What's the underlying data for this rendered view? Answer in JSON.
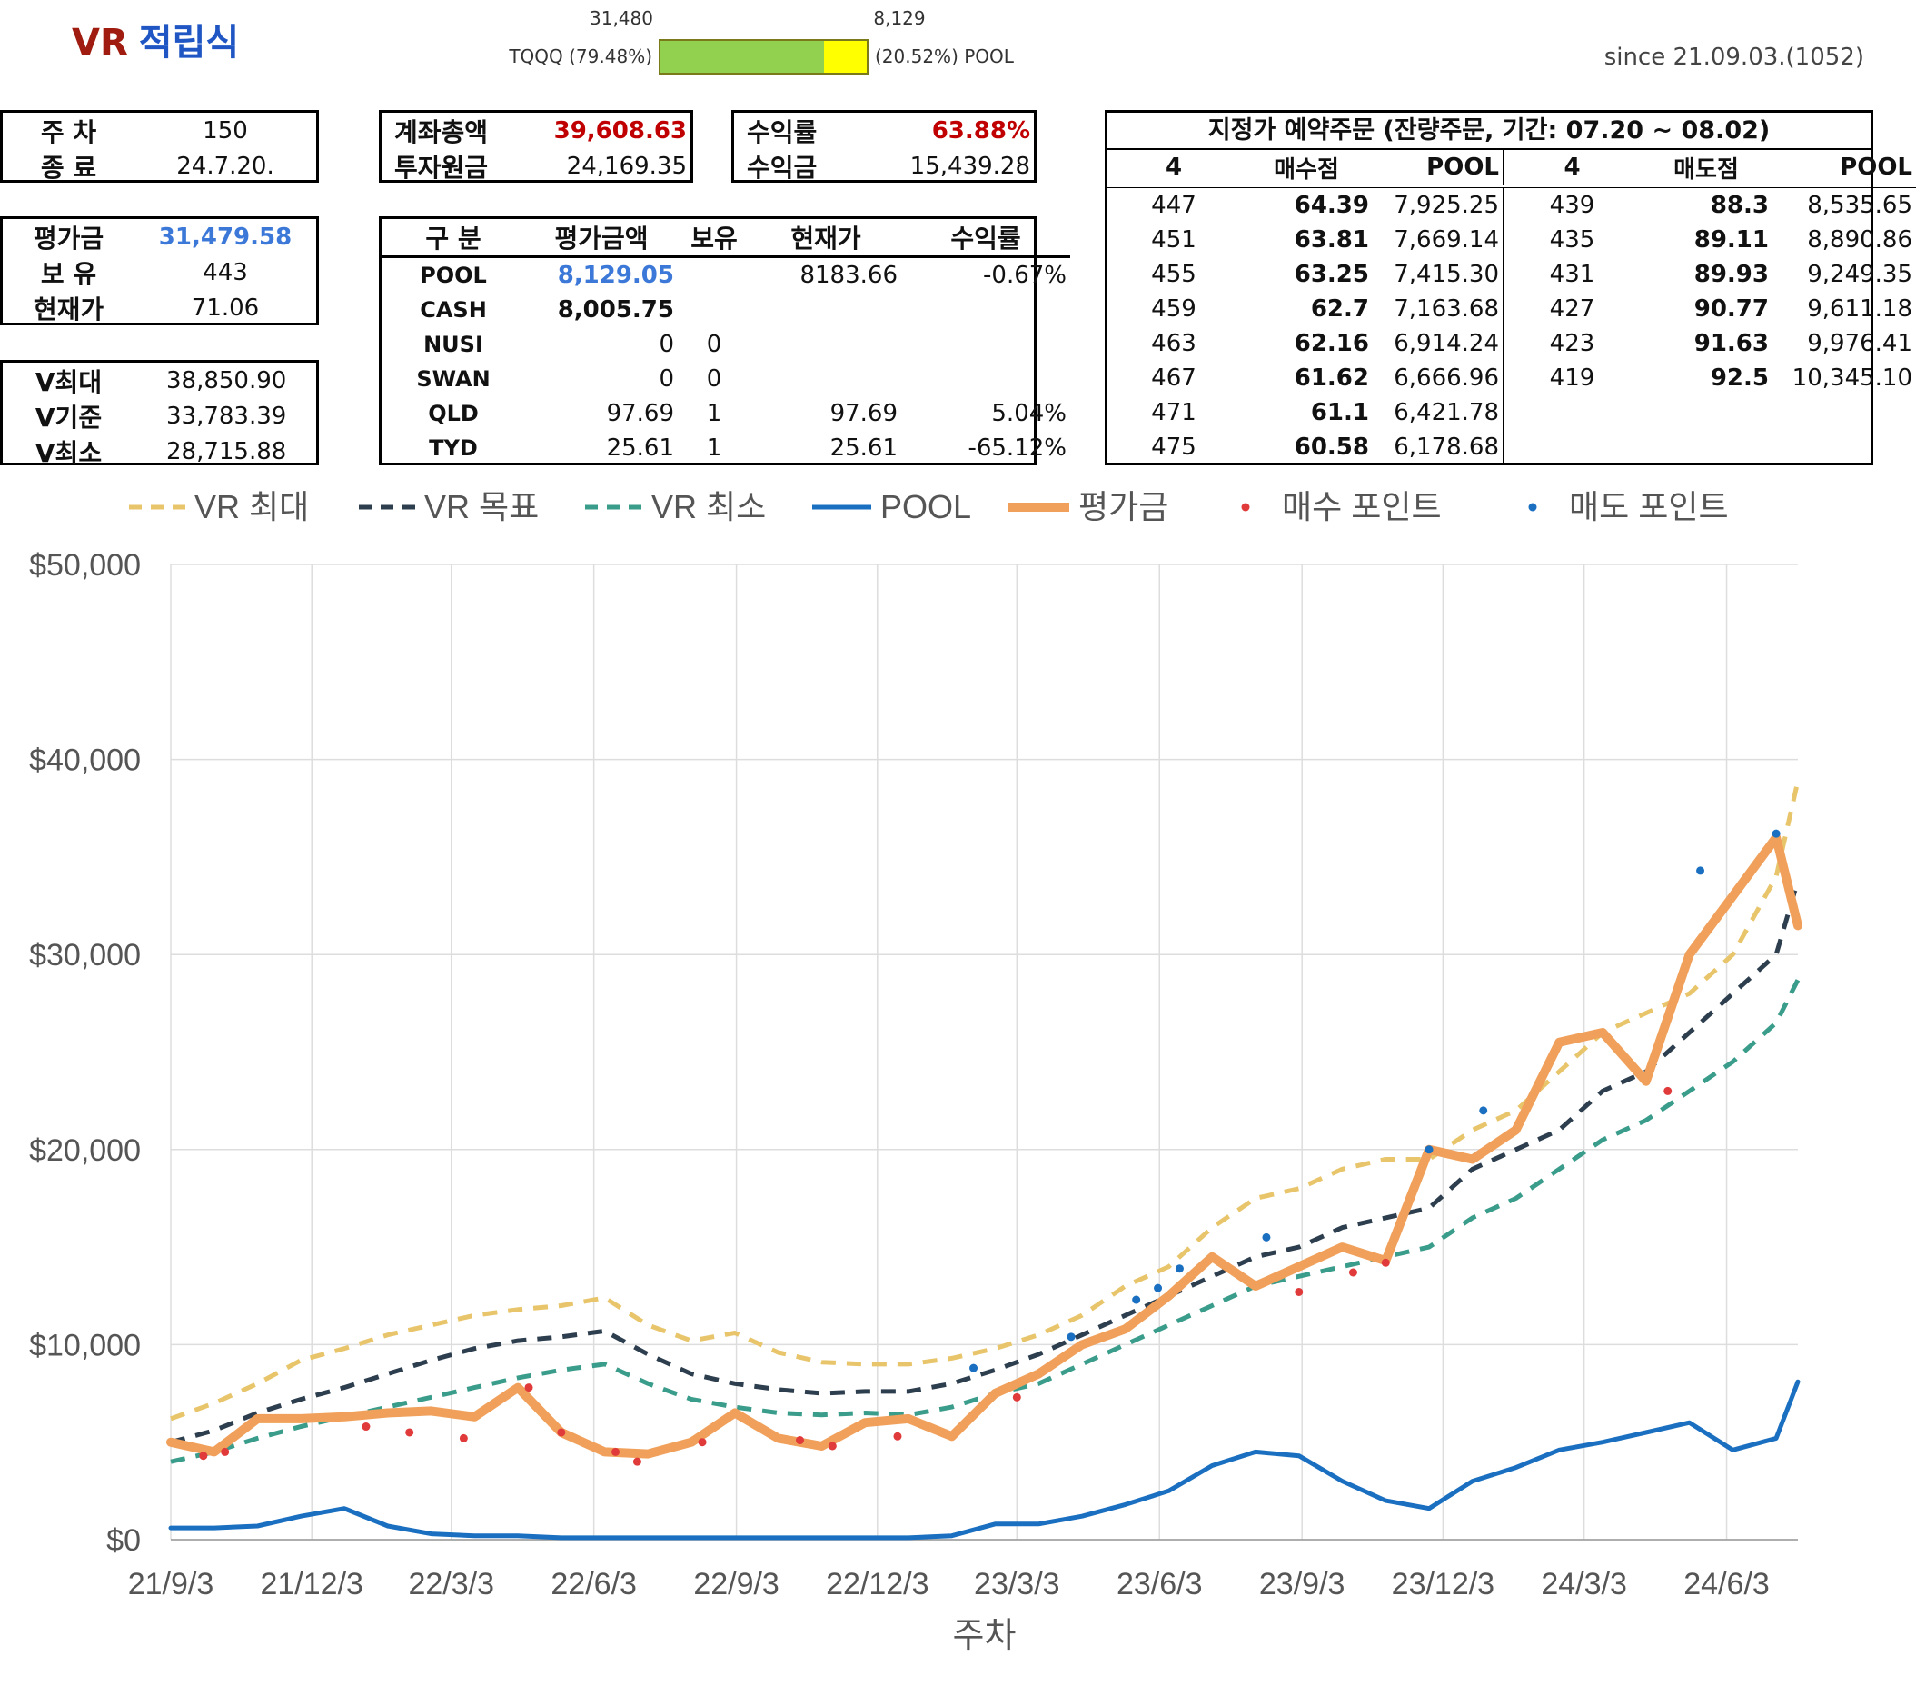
{
  "header": {
    "title_prefix": "VR",
    "title_main": "적립식",
    "since": "since 21.09.03.(1052)",
    "allocation": {
      "values": [
        31480,
        8129
      ],
      "value_labels": [
        "31,480",
        "8,129"
      ],
      "labels": [
        "TQQQ (79.48%)",
        "(20.52%) POOL"
      ],
      "colors": [
        "#92d050",
        "#ffff00"
      ]
    }
  },
  "week_box": {
    "rows": [
      [
        "주 차",
        "150"
      ],
      [
        "종 료",
        "24.7.20."
      ]
    ]
  },
  "value_box": {
    "rows": [
      [
        "평가금",
        "31,479.58"
      ],
      [
        "보 유",
        "443"
      ],
      [
        "현재가",
        "71.06"
      ]
    ]
  },
  "v_box": {
    "rows": [
      [
        "V최대",
        "38,850.90"
      ],
      [
        "V기준",
        "33,783.39"
      ],
      [
        "V최소",
        "28,715.88"
      ]
    ]
  },
  "account_box": {
    "rows": [
      [
        "계좌총액",
        "39,608.63"
      ],
      [
        "투자원금",
        "24,169.35"
      ]
    ]
  },
  "return_box": {
    "rows": [
      [
        "수익률",
        "63.88%"
      ],
      [
        "수익금",
        "15,439.28"
      ]
    ]
  },
  "holdings": {
    "headers": [
      "구 분",
      "평가금액",
      "보유",
      "현재가",
      "수익률"
    ],
    "rows": [
      [
        "POOL",
        "8,129.05",
        null,
        "8183.66",
        "-0.67%"
      ],
      [
        "CASH",
        "8,005.75",
        null,
        null,
        null
      ],
      [
        "NUSI",
        "0",
        "0",
        null,
        null
      ],
      [
        "SWAN",
        "0",
        "0",
        null,
        null
      ],
      [
        "QLD",
        "97.69",
        "1",
        "97.69",
        "5.04%"
      ],
      [
        "TYD",
        "25.61",
        "1",
        "25.61",
        "-65.12%"
      ]
    ]
  },
  "orders": {
    "title": "지정가 예약주문 (잔량주문, 기간: 07.20 ~ 08.02)",
    "headers": [
      "4",
      "매수점",
      "POOL",
      "4",
      "매도점",
      "POOL"
    ],
    "rows": [
      [
        "447",
        "64.39",
        "7,925.25",
        "439",
        "88.3",
        "8,535.65"
      ],
      [
        "451",
        "63.81",
        "7,669.14",
        "435",
        "89.11",
        "8,890.86"
      ],
      [
        "455",
        "63.25",
        "7,415.30",
        "431",
        "89.93",
        "9,249.35"
      ],
      [
        "459",
        "62.7",
        "7,163.68",
        "427",
        "90.77",
        "9,611.18"
      ],
      [
        "463",
        "62.16",
        "6,914.24",
        "423",
        "91.63",
        "9,976.41"
      ],
      [
        "467",
        "61.62",
        "6,666.96",
        "419",
        "92.5",
        "10,345.10"
      ],
      [
        "471",
        "61.1",
        "6,421.78",
        null,
        null,
        null
      ],
      [
        "475",
        "60.58",
        "6,178.68",
        null,
        null,
        null
      ]
    ]
  },
  "chart_data": {
    "type": "line",
    "xlabel": "주차",
    "x": [
      "21/9/3",
      "21/10/1",
      "21/10/29",
      "21/11/26",
      "21/12/24",
      "22/1/21",
      "22/2/18",
      "22/3/18",
      "22/4/15",
      "22/5/13",
      "22/6/10",
      "22/7/8",
      "22/8/5",
      "22/9/2",
      "22/9/30",
      "22/10/28",
      "22/11/25",
      "22/12/23",
      "23/1/20",
      "23/2/17",
      "23/3/17",
      "23/4/14",
      "23/5/12",
      "23/6/9",
      "23/7/7",
      "23/8/4",
      "23/9/1",
      "23/9/29",
      "23/10/27",
      "23/11/24",
      "23/12/22",
      "24/1/19",
      "24/2/16",
      "24/3/15",
      "24/4/12",
      "24/5/10",
      "24/6/7",
      "24/7/5",
      "24/7/19"
    ],
    "xlim": [
      "21/9/3",
      "24/7/19"
    ],
    "xticks": [
      "21/9/3",
      "21/12/3",
      "22/3/3",
      "22/6/3",
      "22/9/3",
      "22/12/3",
      "23/3/3",
      "23/6/3",
      "23/9/3",
      "23/12/3",
      "24/3/3",
      "24/6/3"
    ],
    "ylim": [
      0,
      50000
    ],
    "yticks": [
      {
        "value": 0,
        "label": "$0"
      },
      {
        "value": 10000,
        "label": "$10,000"
      },
      {
        "value": 20000,
        "label": "$20,000"
      },
      {
        "value": 30000,
        "label": "$30,000"
      },
      {
        "value": 40000,
        "label": "$40,000"
      },
      {
        "value": 50000,
        "label": "$50,000"
      }
    ],
    "grid": true,
    "series": [
      {
        "name": "VR 최대",
        "color": "#e8c56b",
        "style": "dashed",
        "values": [
          6200,
          7000,
          8000,
          9200,
          9800,
          10500,
          11000,
          11500,
          11800,
          12000,
          12400,
          11000,
          10200,
          10600,
          9600,
          9100,
          9000,
          9000,
          9300,
          9800,
          10500,
          11500,
          13000,
          14000,
          16000,
          17500,
          18000,
          19000,
          19500,
          19500,
          21000,
          22000,
          24000,
          26000,
          27000,
          28000,
          30000,
          34000,
          38900
        ]
      },
      {
        "name": "VR 목표",
        "color": "#2d3e4e",
        "style": "dashed",
        "values": [
          5000,
          5600,
          6500,
          7200,
          7800,
          8500,
          9200,
          9800,
          10200,
          10400,
          10700,
          9500,
          8500,
          8000,
          7700,
          7500,
          7600,
          7600,
          8000,
          8700,
          9500,
          10500,
          11500,
          12500,
          13500,
          14500,
          15000,
          16000,
          16500,
          17000,
          19000,
          20000,
          21000,
          23000,
          24000,
          26000,
          28000,
          30000,
          33800
        ]
      },
      {
        "name": "VR 최소",
        "color": "#3a9c8a",
        "style": "dashed",
        "values": [
          4000,
          4500,
          5200,
          5800,
          6300,
          6800,
          7300,
          7800,
          8300,
          8700,
          9000,
          8000,
          7200,
          6800,
          6500,
          6400,
          6500,
          6400,
          6800,
          7500,
          8000,
          9000,
          10000,
          11000,
          12000,
          13000,
          13500,
          14000,
          14500,
          15000,
          16500,
          17500,
          19000,
          20500,
          21500,
          23000,
          24500,
          26500,
          28700
        ]
      },
      {
        "name": "POOL",
        "color": "#1a6fc0",
        "style": "solid",
        "values": [
          600,
          600,
          700,
          1200,
          1600,
          700,
          300,
          200,
          200,
          100,
          100,
          100,
          100,
          100,
          100,
          100,
          100,
          100,
          200,
          800,
          800,
          1200,
          1800,
          2500,
          3800,
          4500,
          4300,
          3000,
          2000,
          1600,
          3000,
          3700,
          4600,
          5000,
          5500,
          6000,
          4600,
          5200,
          8100
        ]
      },
      {
        "name": "평가금",
        "color": "#f0a05a",
        "style": "thick",
        "values": [
          5000,
          4500,
          6200,
          6200,
          6300,
          6500,
          6600,
          6300,
          7800,
          5500,
          4500,
          4400,
          5000,
          6500,
          5200,
          4800,
          6000,
          6200,
          5300,
          7500,
          8500,
          10000,
          10800,
          12500,
          14500,
          13000,
          14000,
          15000,
          14300,
          20000,
          19500,
          21000,
          25500,
          26000,
          23500,
          30000,
          33000,
          36000,
          31479.58
        ]
      },
      {
        "name": "매수 포인트",
        "color": "#e03a3a",
        "style": "point",
        "x": [
          "21/9/24",
          "21/10/8",
          "22/1/7",
          "22/2/4",
          "22/3/11",
          "22/4/22",
          "22/5/13",
          "22/6/17",
          "22/7/1",
          "22/8/12",
          "22/10/14",
          "22/11/4",
          "22/12/16",
          "23/3/3",
          "23/9/1",
          "23/10/6",
          "23/10/27",
          "24/4/26"
        ],
        "values": [
          4300,
          4500,
          5800,
          5500,
          5200,
          7800,
          5500,
          4500,
          4000,
          5000,
          5100,
          4800,
          5300,
          7300,
          12700,
          13700,
          14200,
          23000
        ]
      },
      {
        "name": "매도 포인트",
        "color": "#1a6fc0",
        "style": "point",
        "x": [
          "23/2/3",
          "23/4/7",
          "23/5/19",
          "23/6/2",
          "23/6/16",
          "23/8/11",
          "23/11/24",
          "23/12/29",
          "24/5/17",
          "24/7/5"
        ],
        "values": [
          8800,
          10400,
          12300,
          12900,
          13900,
          15500,
          20000,
          22000,
          34300,
          36200
        ]
      }
    ]
  }
}
